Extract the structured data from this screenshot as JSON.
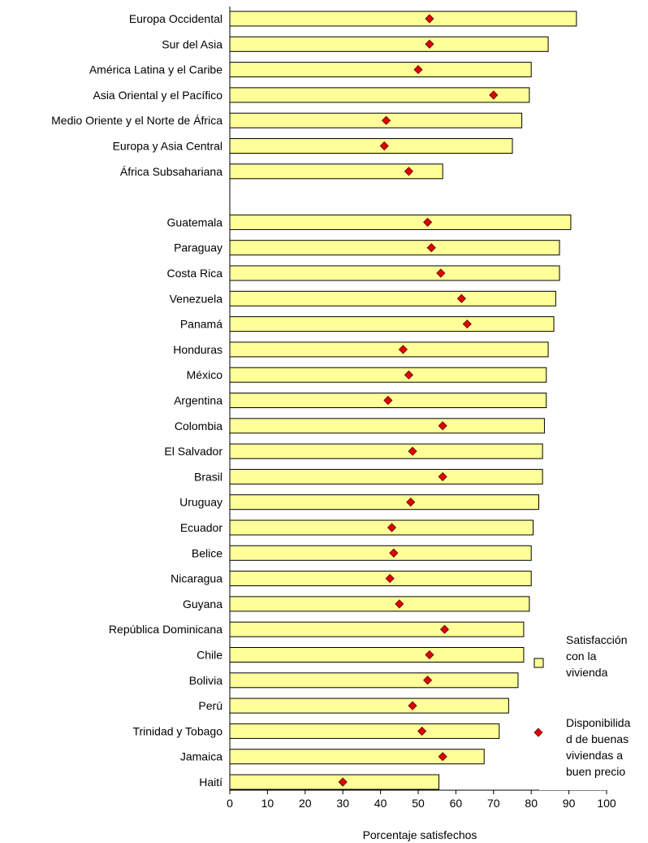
{
  "chart_data": {
    "type": "bar",
    "orientation": "horizontal",
    "xlabel": "Porcentaje satisfechos",
    "xlim": [
      0,
      100
    ],
    "xticks": [
      "0",
      "10",
      "20",
      "30",
      "40",
      "50",
      "60",
      "70",
      "80",
      "90",
      "100"
    ],
    "grid": false,
    "legend_position": "right",
    "categories": [
      "Europa Occidental",
      "Sur del Asia",
      "América Latina y el Caribe",
      "Asia Oriental y el Pacífico",
      "Medio Oriente y el Norte de África",
      "Europa y Asia Central",
      "África Subsahariana",
      "",
      "Guatemala",
      "Paraguay",
      "Costa Rica",
      "Venezuela",
      "Panamá",
      "Honduras",
      "México",
      "Argentina",
      "Colombia",
      "El Salvador",
      "Brasil",
      "Uruguay",
      "Ecuador",
      "Belice",
      "Nicaragua",
      "Guyana",
      "República Dominicana",
      "Chile",
      "Bolivia",
      "Perú",
      "Trinidad y Tobago",
      "Jamaica",
      "Haití"
    ],
    "series": [
      {
        "name": "Satisfacción con la vivienda",
        "marker": "bar",
        "color": "#ffff99",
        "values": [
          92,
          84.5,
          80,
          79.5,
          77.5,
          75,
          56.5,
          null,
          90.5,
          87.5,
          87.5,
          86.5,
          86,
          84.5,
          84,
          84,
          83.5,
          83,
          83,
          82,
          80.5,
          80,
          80,
          79.5,
          78,
          78,
          76.5,
          74,
          71.5,
          67.5,
          55.5
        ]
      },
      {
        "name": "Disponibilidad de buenas viviendas a buen precio",
        "marker": "diamond",
        "color": "#e00000",
        "values": [
          53,
          53,
          50,
          70,
          41.5,
          41,
          47.5,
          null,
          52.5,
          53.5,
          56,
          61.5,
          63,
          46,
          47.5,
          42,
          56.5,
          48.5,
          56.5,
          48,
          43,
          43.5,
          42.5,
          45,
          57,
          53,
          52.5,
          48.5,
          51,
          56.5,
          30
        ]
      }
    ],
    "legend": [
      {
        "series": 0,
        "lines": [
          "Satisfacción",
          "con la",
          "vivienda"
        ]
      },
      {
        "series": 1,
        "lines": [
          "Disponibilida",
          "d de buenas",
          "viviendas a",
          "buen precio"
        ]
      }
    ]
  }
}
